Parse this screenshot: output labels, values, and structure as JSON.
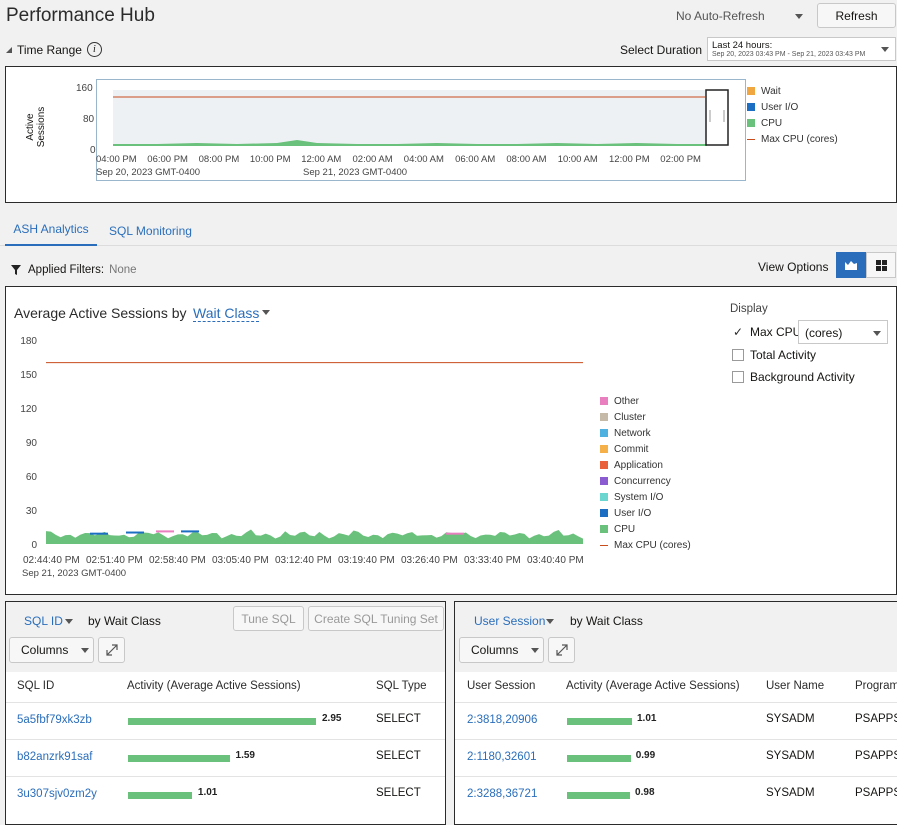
{
  "header": {
    "title": "Performance Hub",
    "auto_refresh": "No Auto-Refresh",
    "refresh_label": "Refresh"
  },
  "time_range": {
    "label": "Time Range",
    "select_duration_label": "Select Duration",
    "duration_value": "Last 24 hours:",
    "duration_range": "Sep 20, 2023 03:43 PM - Sep 21, 2023 03:43 PM"
  },
  "overview_chart": {
    "ylabel_line1": "Active",
    "ylabel_line2": "Sessions",
    "yticks": [
      "160",
      "80",
      "0"
    ],
    "xticks": [
      "04:00 PM",
      "06:00 PM",
      "08:00 PM",
      "10:00 PM",
      "12:00 AM",
      "02:00 AM",
      "04:00 AM",
      "06:00 AM",
      "08:00 AM",
      "10:00 AM",
      "12:00 PM",
      "02:00 PM"
    ],
    "date_left": "Sep 20, 2023 GMT-0400",
    "date_mid": "Sep 21, 2023 GMT-0400",
    "legend": [
      {
        "name": "Wait",
        "color": "#f0a742"
      },
      {
        "name": "User I/O",
        "color": "#1b6ec2"
      },
      {
        "name": "CPU",
        "color": "#6ac17c"
      },
      {
        "name": "Max CPU (cores)",
        "color": "#c84c1c"
      }
    ]
  },
  "tabs": [
    {
      "label": "ASH Analytics"
    },
    {
      "label": "SQL Monitoring"
    }
  ],
  "filters": {
    "label": "Applied Filters:",
    "value": "None",
    "view_options": "View Options"
  },
  "ash": {
    "title_prefix": "Average Active Sessions by",
    "dimension": "Wait Class"
  },
  "display": {
    "label": "Display",
    "max_cpu": "Max CPU",
    "max_cpu_unit": "(cores)",
    "total_activity": "Total Activity",
    "background_activity": "Background Activity"
  },
  "chart_data": {
    "type": "area",
    "yticks": [
      "180",
      "150",
      "120",
      "90",
      "60",
      "30",
      "0"
    ],
    "ylim": [
      0,
      180
    ],
    "x": [
      "02:44:40 PM",
      "02:51:40 PM",
      "02:58:40 PM",
      "03:05:40 PM",
      "03:12:40 PM",
      "03:19:40 PM",
      "03:26:40 PM",
      "03:33:40 PM",
      "03:40:40 PM"
    ],
    "date_label": "Sep 21, 2023 GMT-0400",
    "max_cpu": 160,
    "cpu_level": 8,
    "legend": [
      {
        "name": "Other",
        "color": "#e97fbf"
      },
      {
        "name": "Cluster",
        "color": "#c5b9a8"
      },
      {
        "name": "Network",
        "color": "#4fb1e0"
      },
      {
        "name": "Commit",
        "color": "#f5b04a"
      },
      {
        "name": "Application",
        "color": "#e8613b"
      },
      {
        "name": "Concurrency",
        "color": "#8a5bd1"
      },
      {
        "name": "System I/O",
        "color": "#6bd5d0"
      },
      {
        "name": "User I/O",
        "color": "#1b6ec2"
      },
      {
        "name": "CPU",
        "color": "#6ac17c"
      },
      {
        "name": "Max CPU (cores)",
        "color": "#c84c1c"
      }
    ]
  },
  "sql_panel": {
    "dimension": "SQL ID",
    "by": "by Wait Class",
    "tune": "Tune SQL",
    "create": "Create SQL Tuning Set",
    "columns": "Columns",
    "headers": [
      "SQL ID",
      "Activity (Average Active Sessions)",
      "SQL Type"
    ],
    "rows": [
      {
        "id": "5a5fbf79xk3zb",
        "value": "2.95",
        "ratio": 1.0,
        "type": "SELECT"
      },
      {
        "id": "b82anzrk91saf",
        "value": "1.59",
        "ratio": 0.54,
        "type": "SELECT"
      },
      {
        "id": "3u307sjv0zm2y",
        "value": "1.01",
        "ratio": 0.34,
        "type": "SELECT"
      }
    ]
  },
  "user_panel": {
    "dimension": "User Session",
    "by": "by Wait Class",
    "columns": "Columns",
    "headers": [
      "User Session",
      "Activity (Average Active Sessions)",
      "User Name",
      "Program"
    ],
    "rows": [
      {
        "id": "2:3818,20906",
        "value": "1.01",
        "ratio": 1.0,
        "user": "SYSADM",
        "program": "PSAPPSR"
      },
      {
        "id": "2:1180,32601",
        "value": "0.99",
        "ratio": 0.98,
        "user": "SYSADM",
        "program": "PSAPPSR"
      },
      {
        "id": "2:3288,36721",
        "value": "0.98",
        "ratio": 0.97,
        "user": "SYSADM",
        "program": "PSAPPSR"
      }
    ]
  }
}
